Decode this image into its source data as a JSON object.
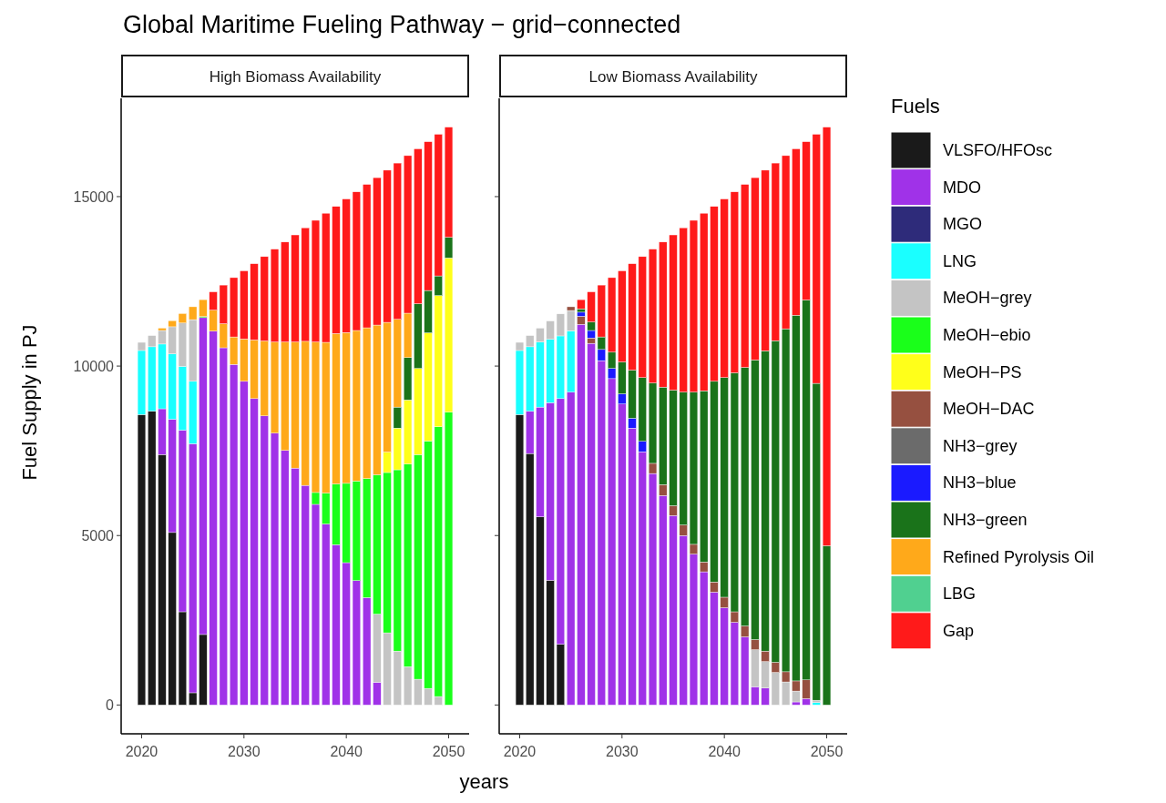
{
  "chart_data": [
    {
      "type": "bar",
      "stacked": true,
      "title": "Global Maritime Fueling Pathway − grid−connected",
      "subtitle": "High Biomass Availability",
      "xlabel": "years",
      "ylabel": "Fuel Supply in PJ",
      "legend_title": "Fuels",
      "legend": "right",
      "x": [
        2020,
        2021,
        2022,
        2023,
        2024,
        2025,
        2026,
        2027,
        2028,
        2029,
        2030,
        2031,
        2032,
        2033,
        2034,
        2035,
        2036,
        2037,
        2038,
        2039,
        2040,
        2041,
        2042,
        2043,
        2044,
        2045,
        2046,
        2047,
        2048,
        2049,
        2050
      ],
      "xlim": [
        2018,
        2052
      ],
      "xticks": [
        2020,
        2030,
        2040,
        2050
      ],
      "ylim": [
        -850,
        17900
      ],
      "yticks": [
        0,
        5000,
        10000,
        15000
      ],
      "series": [
        {
          "name": "VLSFO/HFOsc",
          "color": "#1a1a1a",
          "values": [
            8570,
            8670,
            7390,
            5090,
            2750,
            360,
            2080,
            0,
            0,
            0,
            0,
            0,
            0,
            0,
            0,
            0,
            0,
            0,
            0,
            0,
            0,
            0,
            0,
            0,
            0,
            0,
            0,
            0,
            0,
            0,
            0
          ]
        },
        {
          "name": "MDO",
          "color": "#a032e8",
          "values": [
            0,
            0,
            1350,
            3340,
            5360,
            7350,
            9350,
            11030,
            10540,
            10050,
            9550,
            9040,
            8530,
            8020,
            7510,
            6990,
            6480,
            5920,
            5340,
            4730,
            4200,
            3670,
            3170,
            670,
            0,
            0,
            0,
            0,
            0,
            0,
            0
          ]
        },
        {
          "name": "MGO",
          "color": "#2e2b7a",
          "values": [
            0,
            0,
            0,
            0,
            0,
            0,
            0,
            0,
            0,
            0,
            0,
            0,
            0,
            0,
            0,
            0,
            0,
            0,
            0,
            0,
            0,
            0,
            0,
            0,
            0,
            0,
            0,
            0,
            0,
            0,
            0
          ]
        },
        {
          "name": "LNG",
          "color": "#1affff",
          "values": [
            1890,
            1900,
            1910,
            1930,
            1880,
            1840,
            0,
            0,
            0,
            0,
            0,
            0,
            0,
            0,
            0,
            0,
            0,
            0,
            0,
            0,
            0,
            0,
            0,
            0,
            0,
            0,
            0,
            0,
            0,
            0,
            0
          ]
        },
        {
          "name": "MeOH−grey",
          "color": "#c4c4c4",
          "values": [
            240,
            330,
            400,
            800,
            1280,
            1820,
            0,
            0,
            0,
            0,
            0,
            0,
            0,
            0,
            0,
            0,
            0,
            0,
            0,
            0,
            0,
            0,
            0,
            2010,
            2130,
            1590,
            1130,
            760,
            490,
            250,
            0
          ]
        },
        {
          "name": "MeOH−ebio",
          "color": "#1aff1a",
          "values": [
            0,
            0,
            0,
            0,
            0,
            0,
            30,
            0,
            0,
            0,
            0,
            0,
            0,
            0,
            0,
            0,
            0,
            350,
            910,
            1790,
            2340,
            2940,
            3510,
            4110,
            4730,
            5350,
            5980,
            6630,
            7300,
            7960,
            8640
          ]
        },
        {
          "name": "MeOH−PS",
          "color": "#ffff1a",
          "values": [
            0,
            0,
            0,
            0,
            0,
            0,
            0,
            0,
            0,
            0,
            0,
            0,
            0,
            0,
            0,
            0,
            0,
            0,
            0,
            0,
            0,
            0,
            0,
            0,
            600,
            1230,
            1890,
            2540,
            3190,
            3870,
            4550
          ]
        },
        {
          "name": "MeOH−DAC",
          "color": "#965040",
          "values": [
            0,
            0,
            0,
            0,
            0,
            0,
            0,
            0,
            0,
            0,
            0,
            0,
            0,
            0,
            0,
            0,
            0,
            0,
            0,
            0,
            0,
            0,
            0,
            0,
            0,
            0,
            0,
            0,
            0,
            0,
            0
          ]
        },
        {
          "name": "NH3−grey",
          "color": "#6b6b6b",
          "values": [
            0,
            0,
            0,
            0,
            0,
            0,
            0,
            0,
            0,
            0,
            0,
            0,
            0,
            0,
            0,
            0,
            0,
            0,
            0,
            0,
            0,
            0,
            0,
            0,
            0,
            0,
            0,
            0,
            0,
            0,
            0
          ]
        },
        {
          "name": "NH3−blue",
          "color": "#1a1aff",
          "values": [
            0,
            0,
            0,
            0,
            0,
            0,
            0,
            0,
            0,
            0,
            0,
            0,
            0,
            0,
            0,
            0,
            0,
            0,
            0,
            0,
            0,
            0,
            0,
            0,
            0,
            0,
            0,
            0,
            0,
            0,
            0
          ]
        },
        {
          "name": "NH3−green",
          "color": "#1a731a",
          "values": [
            0,
            0,
            0,
            0,
            0,
            0,
            0,
            0,
            0,
            0,
            0,
            0,
            0,
            0,
            0,
            0,
            0,
            0,
            0,
            0,
            0,
            0,
            0,
            0,
            0,
            620,
            1250,
            1910,
            1250,
            580,
            610
          ]
        },
        {
          "name": "Refined Pyrolysis Oil",
          "color": "#ffa91a",
          "values": [
            0,
            0,
            70,
            180,
            280,
            380,
            500,
            620,
            710,
            810,
            1250,
            1730,
            2210,
            2690,
            3200,
            3720,
            4250,
            4440,
            4450,
            4440,
            4450,
            4440,
            4450,
            4420,
            3830,
            2590,
            1310,
            0,
            0,
            0,
            0
          ]
        },
        {
          "name": "LBG",
          "color": "#50d090",
          "values": [
            0,
            0,
            0,
            0,
            0,
            0,
            0,
            0,
            0,
            0,
            0,
            0,
            0,
            0,
            0,
            0,
            0,
            0,
            0,
            0,
            0,
            0,
            0,
            0,
            0,
            0,
            0,
            0,
            0,
            0,
            0
          ]
        },
        {
          "name": "Gap",
          "color": "#ff1a1a",
          "values": [
            0,
            0,
            0,
            0,
            0,
            0,
            0,
            540,
            1140,
            1750,
            2010,
            2250,
            2490,
            2740,
            2950,
            3160,
            3350,
            3590,
            3810,
            3750,
            3940,
            4090,
            4230,
            4350,
            4490,
            4610,
            4650,
            4570,
            4390,
            4180,
            3250
          ]
        }
      ]
    },
    {
      "type": "bar",
      "stacked": true,
      "subtitle": "Low Biomass Availability",
      "tick_labels": "x",
      "x": [
        2020,
        2021,
        2022,
        2023,
        2024,
        2025,
        2026,
        2027,
        2028,
        2029,
        2030,
        2031,
        2032,
        2033,
        2034,
        2035,
        2036,
        2037,
        2038,
        2039,
        2040,
        2041,
        2042,
        2043,
        2044,
        2045,
        2046,
        2047,
        2048,
        2049,
        2050
      ],
      "xlim": [
        2018,
        2052
      ],
      "xticks": [
        2020,
        2030,
        2040,
        2050
      ],
      "ylim": [
        -850,
        17900
      ],
      "yticks": [
        0,
        5000,
        10000,
        15000
      ],
      "series": [
        {
          "color": "#1a1a1a",
          "values": [
            8570,
            7420,
            5550,
            3680,
            1790,
            0,
            0,
            0,
            0,
            0,
            0,
            0,
            0,
            0,
            0,
            0,
            0,
            0,
            0,
            0,
            0,
            0,
            0,
            0,
            0,
            0,
            0,
            0,
            0,
            0,
            0
          ]
        },
        {
          "color": "#a032e8",
          "values": [
            0,
            1250,
            3240,
            5240,
            7250,
            9230,
            11230,
            10670,
            10160,
            9630,
            8880,
            8170,
            7470,
            6830,
            6180,
            5590,
            5000,
            4450,
            3930,
            3330,
            2870,
            2440,
            2010,
            540,
            500,
            0,
            0,
            90,
            190,
            0,
            0
          ]
        },
        {
          "color": "#1affff",
          "values": [
            1890,
            1900,
            1920,
            1870,
            1850,
            1810,
            0,
            0,
            0,
            0,
            0,
            0,
            0,
            0,
            0,
            0,
            0,
            0,
            0,
            0,
            0,
            0,
            0,
            0,
            0,
            0,
            0,
            0,
            0,
            70,
            0
          ]
        },
        {
          "color": "#c4c4c4",
          "values": [
            240,
            330,
            410,
            540,
            650,
            600,
            0,
            0,
            0,
            0,
            0,
            0,
            0,
            0,
            0,
            0,
            0,
            0,
            0,
            0,
            0,
            0,
            0,
            1090,
            780,
            960,
            680,
            320,
            0,
            70,
            0
          ]
        },
        {
          "color": "#965040",
          "values": [
            0,
            0,
            0,
            0,
            0,
            110,
            240,
            160,
            0,
            0,
            0,
            0,
            0,
            300,
            320,
            290,
            310,
            290,
            290,
            300,
            310,
            310,
            320,
            300,
            310,
            300,
            300,
            300,
            550,
            0,
            0
          ]
        },
        {
          "color": "#1a1aff",
          "values": [
            0,
            0,
            0,
            0,
            0,
            0,
            120,
            220,
            330,
            300,
            300,
            290,
            310,
            0,
            0,
            0,
            0,
            0,
            0,
            0,
            0,
            0,
            0,
            0,
            0,
            0,
            0,
            0,
            0,
            0,
            0
          ]
        },
        {
          "color": "#1a731a",
          "values": [
            0,
            0,
            0,
            0,
            0,
            0,
            100,
            250,
            370,
            480,
            940,
            1420,
            1880,
            2370,
            2880,
            3410,
            3920,
            4490,
            5050,
            5920,
            6480,
            7050,
            7630,
            8250,
            8860,
            9490,
            10120,
            10790,
            11210,
            9350,
            4700
          ]
        },
        {
          "color": "#ff1a1a",
          "values": [
            0,
            0,
            0,
            0,
            0,
            0,
            270,
            890,
            1530,
            2200,
            2690,
            3140,
            3570,
            3950,
            4280,
            4580,
            4850,
            5070,
            5240,
            5160,
            5270,
            5340,
            5400,
            5380,
            5330,
            5240,
            5110,
            4910,
            4670,
            7350,
            12350
          ]
        }
      ]
    }
  ]
}
